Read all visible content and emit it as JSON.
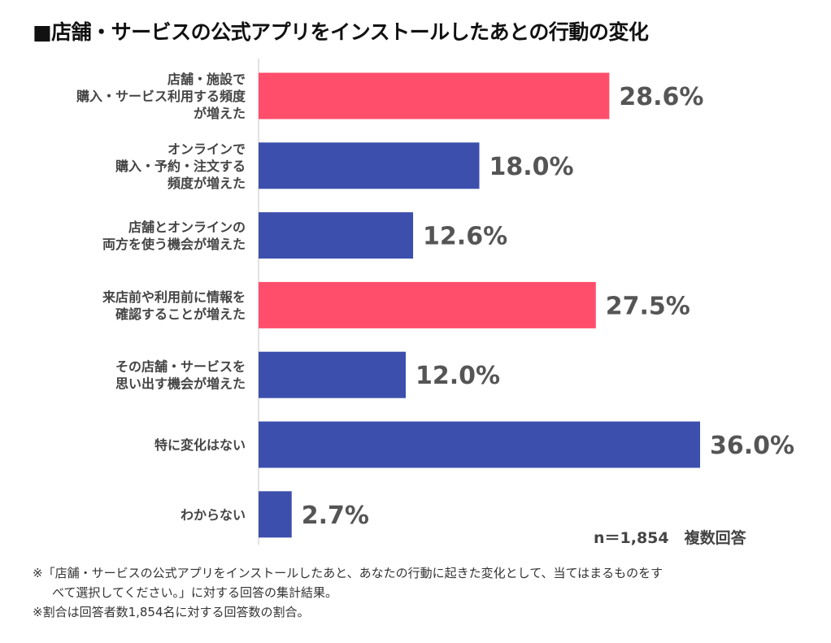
{
  "title": "■店舗・サービスの公式アプリをインストールしたあとの行動の変化",
  "chart_data": {
    "type": "bar",
    "orientation": "horizontal",
    "categories": [
      [
        "店舗・施設で",
        "購入・サービス利用する頻度",
        "が増えた"
      ],
      [
        "オンラインで",
        "購入・予約・注文する",
        "頻度が増えた"
      ],
      [
        "店舗とオンラインの",
        "両方を使う機会が増えた"
      ],
      [
        "来店前や利用前に情報を",
        "確認することが増えた"
      ],
      [
        "その店舗・サービスを",
        "思い出す機会が増えた"
      ],
      [
        "特に変化はない"
      ],
      [
        "わからない"
      ]
    ],
    "values": [
      28.6,
      18.0,
      12.6,
      27.5,
      12.0,
      36.0,
      2.7
    ],
    "value_labels": [
      "28.6%",
      "18.0%",
      "12.6%",
      "27.5%",
      "12.0%",
      "36.0%",
      "2.7%"
    ],
    "highlight": [
      true,
      false,
      false,
      true,
      false,
      false,
      false
    ],
    "colors": {
      "highlight": "#FF4E6B",
      "default": "#3D4FAD",
      "axis": "#d9d9d9",
      "value_text": "#555555"
    },
    "xlim": [
      0,
      36
    ],
    "grid": false
  },
  "sample_label": "n＝1,854　複数回答",
  "footnotes": [
    "※「店舗・サービスの公式アプリをインストールしたあと、あなたの行動に起きた変化として、当てはまるものをす",
    "べて選択してください。」に対する回答の集計結果。",
    "※割合は回答者数1,854名に対する回答数の割合。"
  ]
}
